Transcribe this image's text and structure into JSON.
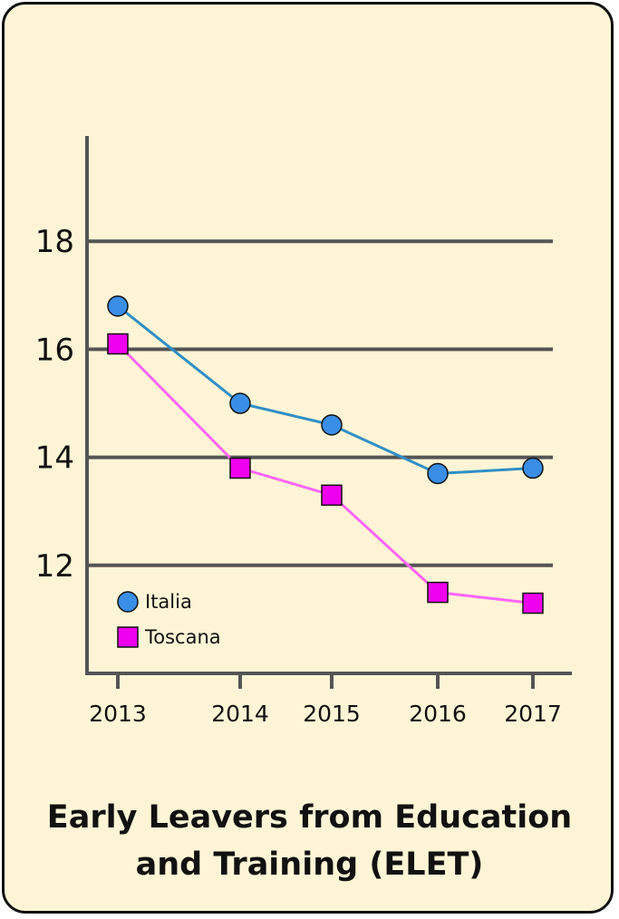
{
  "chart_data": {
    "type": "line",
    "title_lines": [
      "Early Leavers from Education",
      "and Training (ELET)"
    ],
    "x": [
      "2013",
      "2014",
      "2015",
      "2016",
      "2017"
    ],
    "yticks": [
      "12",
      "14",
      "16",
      "18"
    ],
    "ylim": [
      10.0,
      19.95
    ],
    "grid": "horizontal",
    "legend_position": "bottom-left",
    "series": [
      {
        "name": "Italia",
        "values": [
          16.8,
          15.0,
          14.6,
          13.7,
          13.8
        ],
        "color": "#2f8fc6",
        "marker": "circle",
        "marker_color": "#3a8ee6"
      },
      {
        "name": "Toscana",
        "values": [
          16.1,
          13.8,
          13.3,
          11.5,
          11.3
        ],
        "color": "#ff66ff",
        "marker": "square",
        "marker_color": "#ee00ee"
      }
    ]
  }
}
